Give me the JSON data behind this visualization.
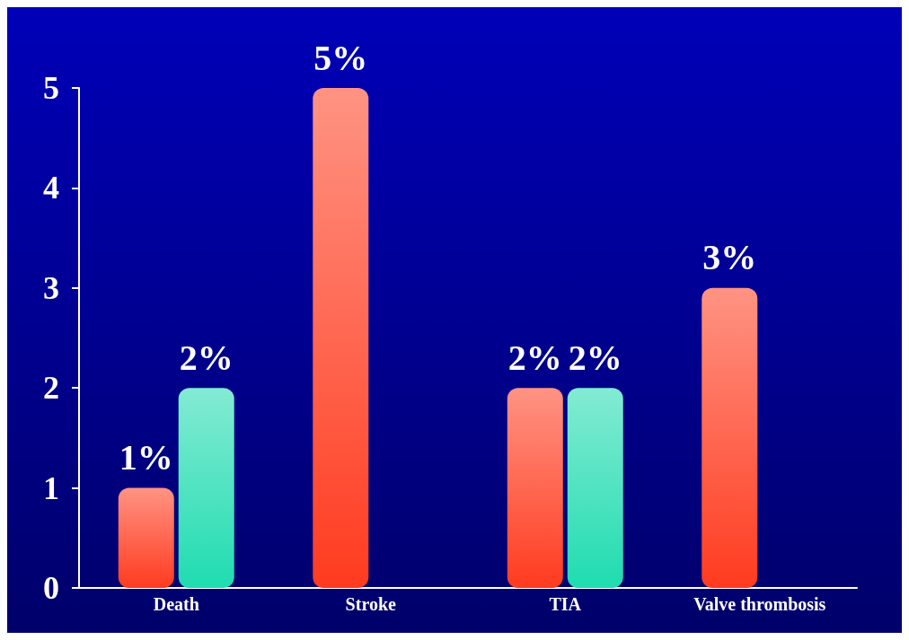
{
  "chart_data": {
    "type": "bar",
    "categories": [
      "Death",
      "Stroke",
      "TIA",
      "Valve thrombosis"
    ],
    "series": [
      {
        "color": "#ff3b1f",
        "values": [
          1,
          5,
          2,
          3
        ],
        "value_labels": [
          "1%",
          "5%",
          "2%",
          "3%"
        ]
      },
      {
        "color": "#1fdcb0",
        "values": [
          2,
          0,
          2,
          0
        ],
        "value_labels": [
          "2%",
          null,
          "2%",
          null
        ]
      }
    ],
    "ylim": [
      0,
      5
    ],
    "yticks": [
      0,
      1,
      2,
      3,
      4,
      5
    ],
    "grid": false
  }
}
